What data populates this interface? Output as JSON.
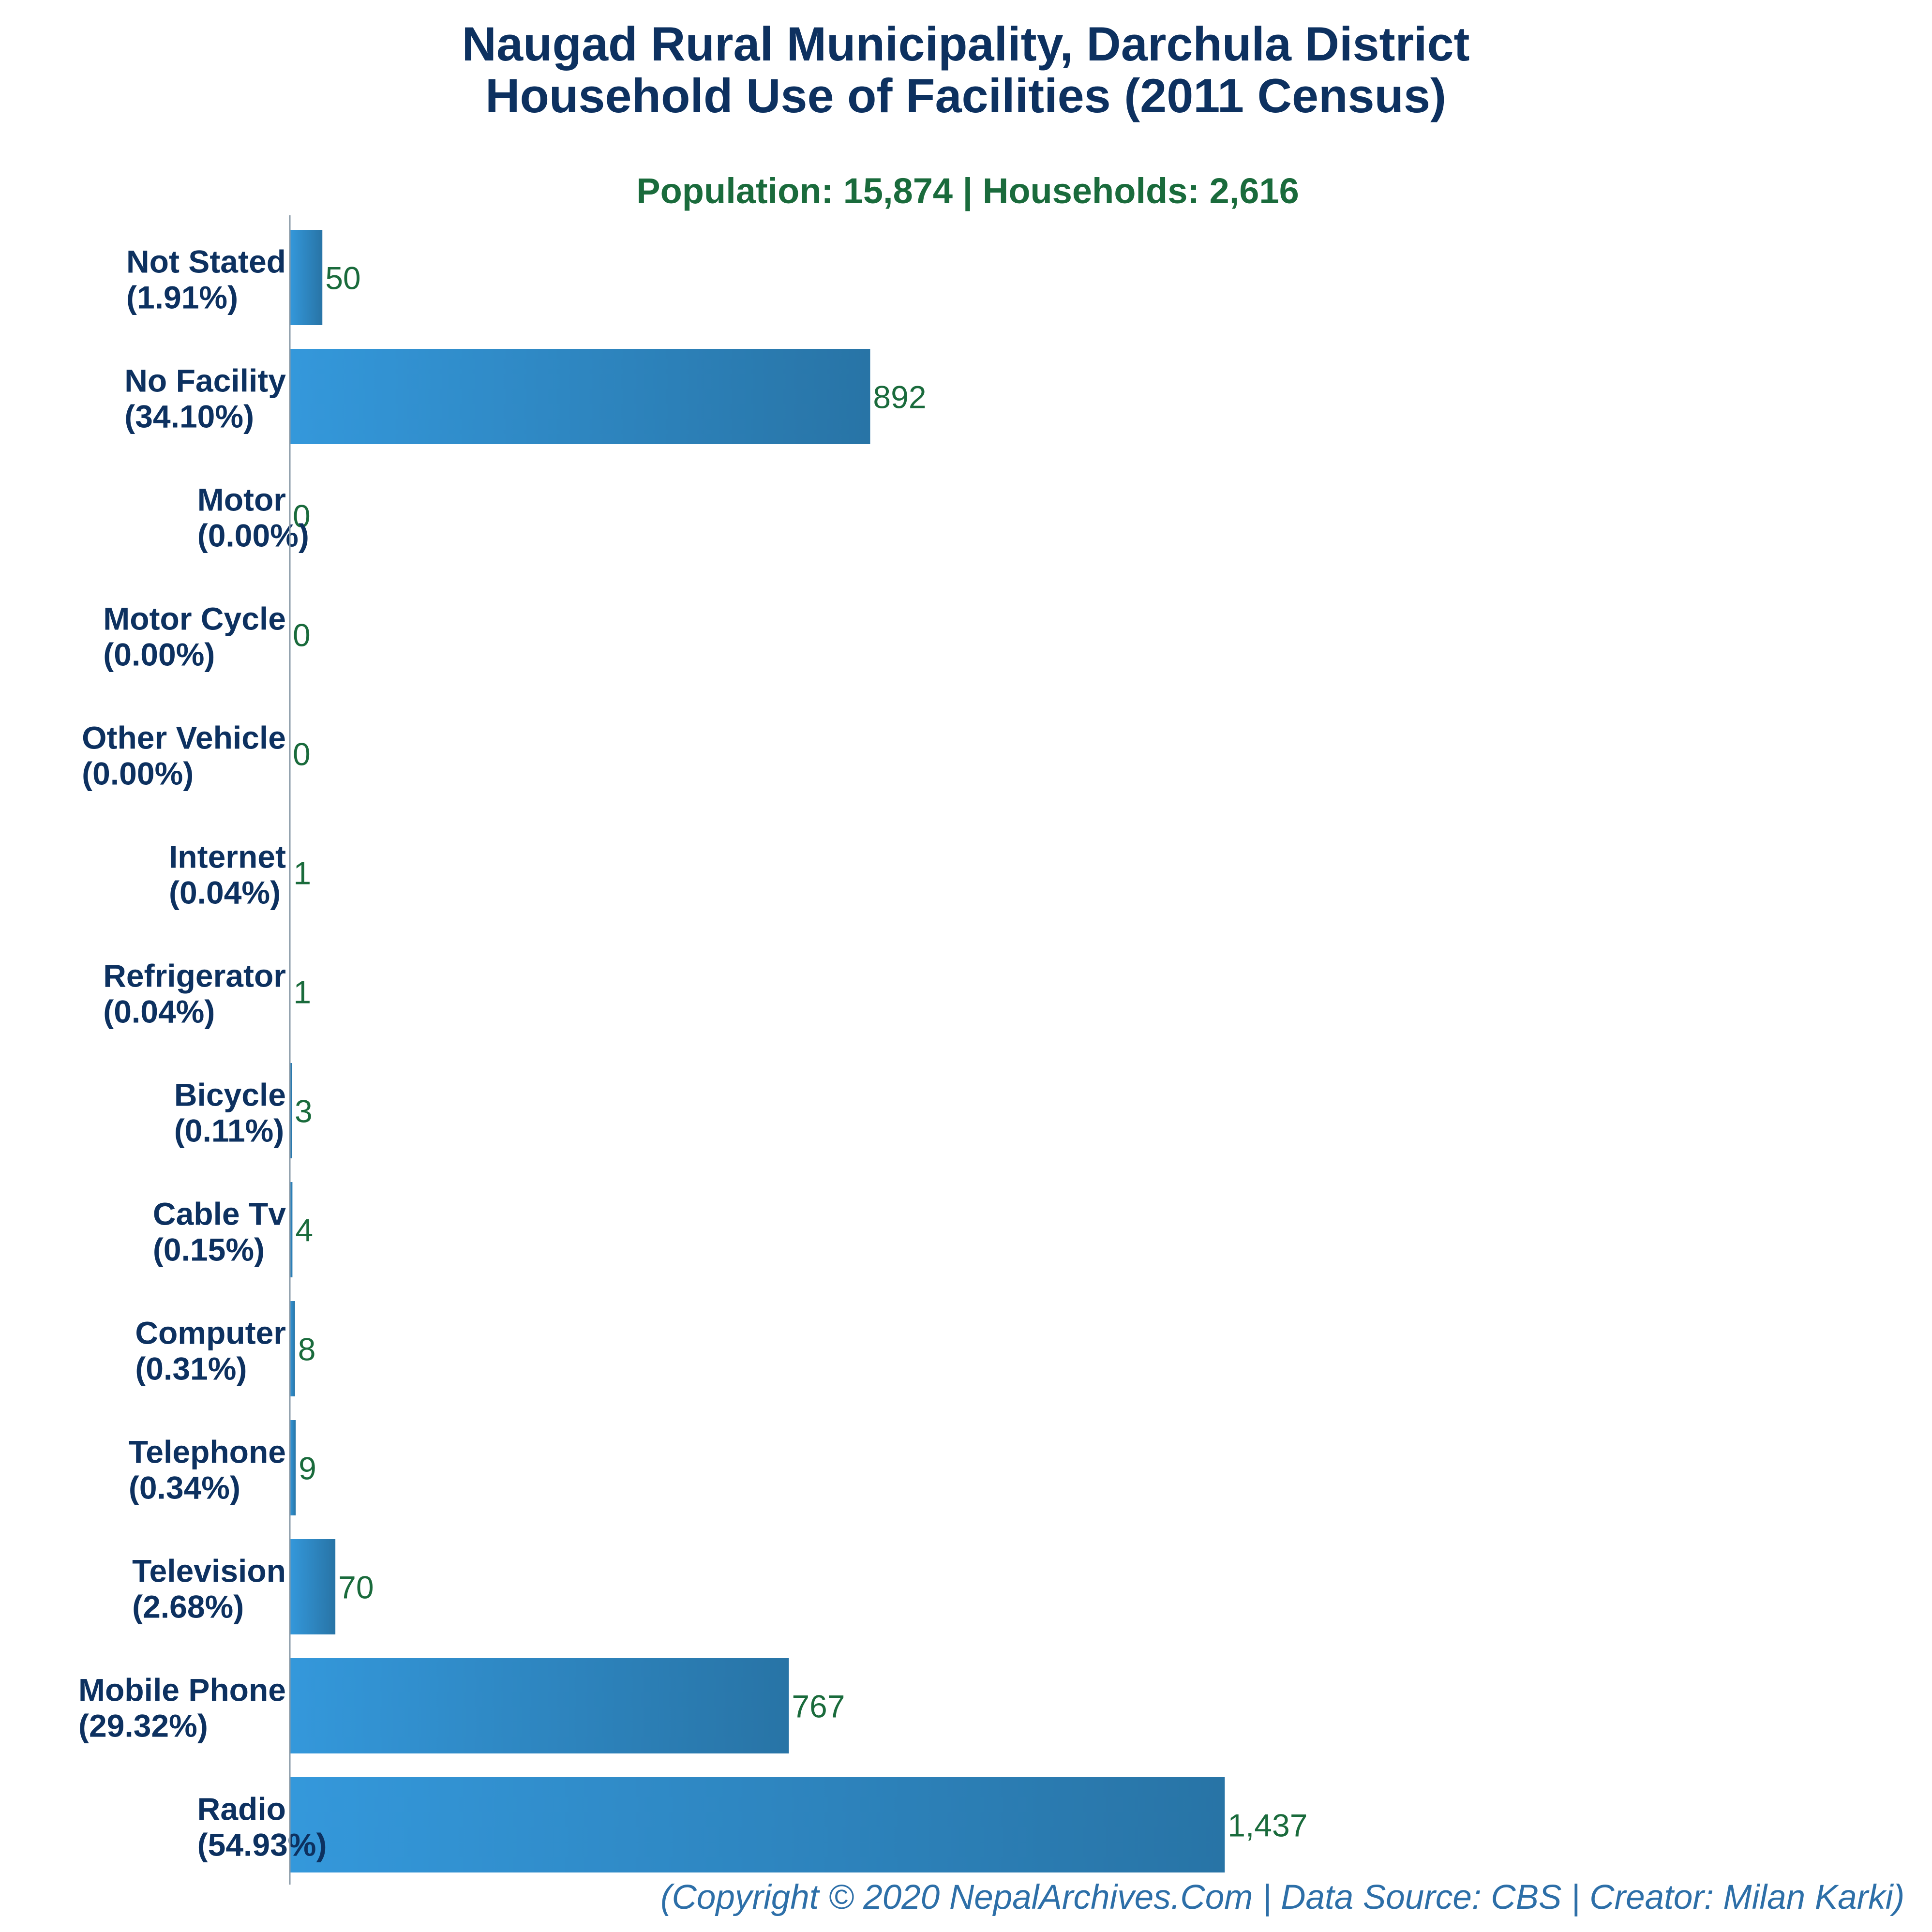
{
  "chart_data": {
    "type": "bar",
    "orientation": "horizontal",
    "title": "Naugad Rural Municipality, Darchula District",
    "title_line2": "Household Use of Facilities (2011 Census)",
    "subtitle": "Population: 15,874 | Households: 2,616",
    "categories": [
      "Not Stated",
      "No Facility",
      "Motor",
      "Motor Cycle",
      "Other Vehicle",
      "Internet",
      "Refrigerator",
      "Bicycle",
      "Cable Tv",
      "Computer",
      "Telephone",
      "Television",
      "Mobile Phone",
      "Radio"
    ],
    "percent_labels": [
      "(1.91%)",
      "(34.10%)",
      "(0.00%)",
      "(0.00%)",
      "(0.00%)",
      "(0.04%)",
      "(0.04%)",
      "(0.11%)",
      "(0.15%)",
      "(0.31%)",
      "(0.34%)",
      "(2.68%)",
      "(29.32%)",
      "(54.93%)"
    ],
    "values": [
      50,
      892,
      0,
      0,
      0,
      1,
      1,
      3,
      4,
      8,
      9,
      70,
      767,
      1437
    ],
    "value_labels": [
      "50",
      "892",
      "0",
      "0",
      "0",
      "1",
      "1",
      "3",
      "4",
      "8",
      "9",
      "70",
      "767",
      "1,437"
    ],
    "xlim": [
      0,
      2150
    ],
    "grid": false,
    "legend": "none",
    "colors": {
      "bar_start": "#3498db",
      "bar_end": "#2874a6",
      "title": "#0d3160",
      "subtitle": "#1a6b3c",
      "value_label": "#1a6b3c",
      "footer": "#2d6fa8",
      "axis": "#8a9aa8"
    },
    "footer": "(Copyright © 2020 NepalArchives.Com | Data Source: CBS | Creator: Milan Karki)"
  }
}
